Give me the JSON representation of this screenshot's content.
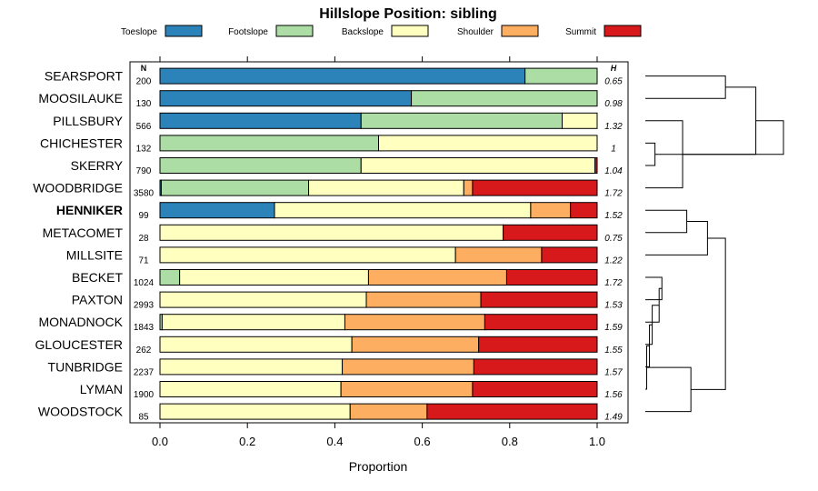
{
  "chart_data": {
    "type": "bar",
    "orientation": "horizontal",
    "stacked": true,
    "title": "Hillslope Position: sibling",
    "xlabel": "Proportion",
    "xlim": [
      0,
      1
    ],
    "xticks": [
      "0.0",
      "0.2",
      "0.4",
      "0.6",
      "0.8",
      "1.0"
    ],
    "n_header": "N",
    "h_header": "H",
    "highlight": "HENNIKER",
    "series": [
      {
        "name": "Toeslope",
        "color": "#2b83ba"
      },
      {
        "name": "Footslope",
        "color": "#abdda4"
      },
      {
        "name": "Backslope",
        "color": "#ffffbf"
      },
      {
        "name": "Shoulder",
        "color": "#fdae61"
      },
      {
        "name": "Summit",
        "color": "#d7191c"
      }
    ],
    "rows": [
      {
        "label": "SEARSPORT",
        "n": "200",
        "h": "0.65",
        "values": [
          0.835,
          0.165,
          0,
          0,
          0
        ]
      },
      {
        "label": "MOOSILAUKE",
        "n": "130",
        "h": "0.98",
        "values": [
          0.575,
          0.425,
          0,
          0,
          0
        ]
      },
      {
        "label": "PILLSBURY",
        "n": "566",
        "h": "1.32",
        "values": [
          0.46,
          0.46,
          0.08,
          0,
          0
        ]
      },
      {
        "label": "CHICHESTER",
        "n": "132",
        "h": "1",
        "values": [
          0,
          0.5,
          0.5,
          0,
          0
        ]
      },
      {
        "label": "SKERRY",
        "n": "790",
        "h": "1.04",
        "values": [
          0,
          0.46,
          0.535,
          0,
          0.005
        ]
      },
      {
        "label": "WOODBRIDGE",
        "n": "3580",
        "h": "1.72",
        "values": [
          0.003,
          0.337,
          0.355,
          0.02,
          0.285
        ]
      },
      {
        "label": "HENNIKER",
        "n": "99",
        "h": "1.52",
        "values": [
          0.262,
          0,
          0.586,
          0.091,
          0.061
        ]
      },
      {
        "label": "METACOMET",
        "n": "28",
        "h": "0.75",
        "values": [
          0,
          0,
          0.785,
          0,
          0.215
        ]
      },
      {
        "label": "MILLSITE",
        "n": "71",
        "h": "1.22",
        "values": [
          0,
          0,
          0.676,
          0.197,
          0.127
        ]
      },
      {
        "label": "BECKET",
        "n": "1024",
        "h": "1.72",
        "values": [
          0,
          0.045,
          0.432,
          0.316,
          0.207
        ]
      },
      {
        "label": "PAXTON",
        "n": "2993",
        "h": "1.53",
        "values": [
          0,
          0,
          0.472,
          0.262,
          0.266
        ]
      },
      {
        "label": "MONADNOCK",
        "n": "1843",
        "h": "1.59",
        "values": [
          0,
          0.005,
          0.418,
          0.32,
          0.257
        ]
      },
      {
        "label": "GLOUCESTER",
        "n": "262",
        "h": "1.55",
        "values": [
          0,
          0,
          0.439,
          0.29,
          0.271
        ]
      },
      {
        "label": "TUNBRIDGE",
        "n": "2237",
        "h": "1.57",
        "values": [
          0,
          0,
          0.417,
          0.301,
          0.282
        ]
      },
      {
        "label": "LYMAN",
        "n": "1900",
        "h": "1.56",
        "values": [
          0,
          0,
          0.414,
          0.301,
          0.285
        ]
      },
      {
        "label": "WOODSTOCK",
        "n": "85",
        "h": "1.49",
        "values": [
          0,
          0,
          0.435,
          0.176,
          0.389
        ]
      }
    ],
    "dendrogram": {
      "merges": [
        {
          "left": "SEARSPORT",
          "right": "MOOSILAUKE",
          "height": 0.58
        },
        {
          "left": "CHICHESTER",
          "right": "SKERRY",
          "height": 0.07
        },
        {
          "left": "PILLSBURY",
          "right": "WOODBRIDGE",
          "height": 0.27
        },
        {
          "left": "MERGE1",
          "right": "MERGE0",
          "height": 0.8
        },
        {
          "left": "HENNIKER",
          "right": "METACOMET",
          "height": 0.3
        },
        {
          "left": "MERGE4",
          "right": "MILLSITE",
          "height": 0.45
        },
        {
          "left": "BECKET",
          "right": "PAXTON",
          "height": 0.12
        },
        {
          "left": "MERGE6",
          "right": "MONADNOCK",
          "height": 0.1
        },
        {
          "left": "MERGE7",
          "right": "GLOUCESTER",
          "height": 0.05
        },
        {
          "left": "MERGE8",
          "right": "TUNBRIDGE",
          "height": 0.03
        },
        {
          "left": "MERGE9",
          "right": "LYMAN",
          "height": 0.01
        },
        {
          "left": "MERGE10",
          "right": "WOODSTOCK",
          "height": 0.33
        },
        {
          "left": "MERGE5",
          "right": "MERGE11",
          "height": 0.58
        },
        {
          "left": "MERGE2",
          "right": "MERGE3",
          "height": 1.0
        }
      ]
    }
  }
}
